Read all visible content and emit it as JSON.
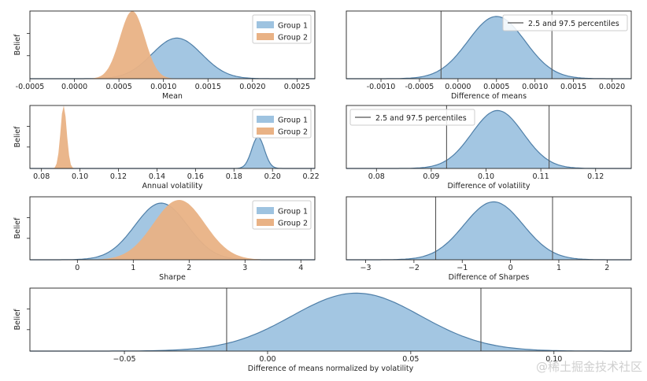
{
  "colors": {
    "group1_fill": "#9ec3e0",
    "group1_line": "#4f7fa8",
    "group2_fill": "#e9b285",
    "vline": "#555555"
  },
  "watermark": "@稀土掘金技术社区",
  "chart_data": [
    {
      "id": "mean",
      "type": "area",
      "title": "",
      "xlabel": "Mean",
      "ylabel": "Belief",
      "xlim": [
        -0.0005,
        0.0027
      ],
      "xticks": [
        -0.0005,
        0.0,
        0.0005,
        0.001,
        0.0015,
        0.002,
        0.0025
      ],
      "xtick_labels": [
        "-0.0005",
        "0.0000",
        "0.0005",
        "0.0010",
        "0.0015",
        "0.0020",
        "0.0025"
      ],
      "legend": "top-right",
      "series": [
        {
          "name": "Group 1",
          "mean": 0.00115,
          "sd": 0.00028,
          "peak": 0.6
        },
        {
          "name": "Group 2",
          "mean": 0.00065,
          "sd": 0.00014,
          "peak": 1.0
        }
      ]
    },
    {
      "id": "diff_means",
      "type": "area",
      "title": "",
      "xlabel": "Difference of means",
      "xlim": [
        -0.00145,
        0.00225
      ],
      "xticks": [
        -0.001,
        -0.0005,
        0.0,
        0.0005,
        0.001,
        0.0015,
        0.002
      ],
      "xtick_labels": [
        "-0.0010",
        "-0.0005",
        "0.0000",
        "0.0005",
        "0.0010",
        "0.0015",
        "0.0020"
      ],
      "legend": "top-right",
      "vline_label": "2.5 and 97.5 percentiles",
      "vlines": [
        -0.00022,
        0.00122
      ],
      "series": [
        {
          "name": "",
          "mean": 0.0005,
          "sd": 0.00037,
          "peak": 0.92
        }
      ]
    },
    {
      "id": "volatility",
      "type": "area",
      "title": "",
      "xlabel": "Annual volatility",
      "ylabel": "Belief",
      "xlim": [
        0.074,
        0.222
      ],
      "xticks": [
        0.08,
        0.1,
        0.12,
        0.14,
        0.16,
        0.18,
        0.2,
        0.22
      ],
      "xtick_labels": [
        "0.08",
        "0.10",
        "0.12",
        "0.14",
        "0.16",
        "0.18",
        "0.20",
        "0.22"
      ],
      "legend": "top-right",
      "series": [
        {
          "name": "Group 1",
          "mean": 0.1925,
          "sd": 0.0033,
          "peak": 0.5
        },
        {
          "name": "Group 2",
          "mean": 0.0915,
          "sd": 0.0016,
          "peak": 1.0
        }
      ]
    },
    {
      "id": "diff_vol",
      "type": "area",
      "title": "",
      "xlabel": "Difference of volatility",
      "xlim": [
        0.0745,
        0.1265
      ],
      "xticks": [
        0.08,
        0.09,
        0.1,
        0.11,
        0.12
      ],
      "xtick_labels": [
        "0.08",
        "0.09",
        "0.10",
        "0.11",
        "0.12"
      ],
      "legend": "top-left",
      "vline_label": "2.5 and 97.5 percentiles",
      "vlines": [
        0.0928,
        0.1115
      ],
      "series": [
        {
          "name": "",
          "mean": 0.1021,
          "sd": 0.0047,
          "peak": 0.92
        }
      ]
    },
    {
      "id": "sharpe",
      "type": "area",
      "title": "",
      "xlabel": "Sharpe",
      "ylabel": "Belief",
      "xlim": [
        -0.85,
        4.25
      ],
      "xticks": [
        0,
        1,
        2,
        3,
        4
      ],
      "xtick_labels": [
        "0",
        "1",
        "2",
        "3",
        "4"
      ],
      "legend": "top-right",
      "series": [
        {
          "name": "Group 1",
          "mean": 1.5,
          "sd": 0.47,
          "peak": 0.9
        },
        {
          "name": "Group 2",
          "mean": 1.82,
          "sd": 0.46,
          "peak": 0.95
        }
      ]
    },
    {
      "id": "diff_sharpe",
      "type": "area",
      "title": "",
      "xlabel": "Difference of Sharpes",
      "xlim": [
        -3.4,
        2.5
      ],
      "xticks": [
        -3,
        -2,
        -1,
        0,
        1,
        2
      ],
      "xtick_labels": [
        "−3",
        "−2",
        "−1",
        "0",
        "1",
        "2"
      ],
      "legend": "none",
      "vlines": [
        -1.55,
        0.87
      ],
      "series": [
        {
          "name": "",
          "mean": -0.35,
          "sd": 0.61,
          "peak": 0.92
        }
      ]
    },
    {
      "id": "effect_size",
      "type": "area",
      "title": "",
      "xlabel": "Difference of means normalized by volatility",
      "ylabel": "Belief",
      "xlim": [
        -0.083,
        0.127
      ],
      "xticks": [
        -0.05,
        0.0,
        0.05,
        0.1
      ],
      "xtick_labels": [
        "−0.05",
        "0.00",
        "0.05",
        "0.10"
      ],
      "legend": "none",
      "vlines": [
        -0.0143,
        0.0745
      ],
      "series": [
        {
          "name": "",
          "mean": 0.031,
          "sd": 0.0225,
          "peak": 0.92
        }
      ]
    }
  ]
}
